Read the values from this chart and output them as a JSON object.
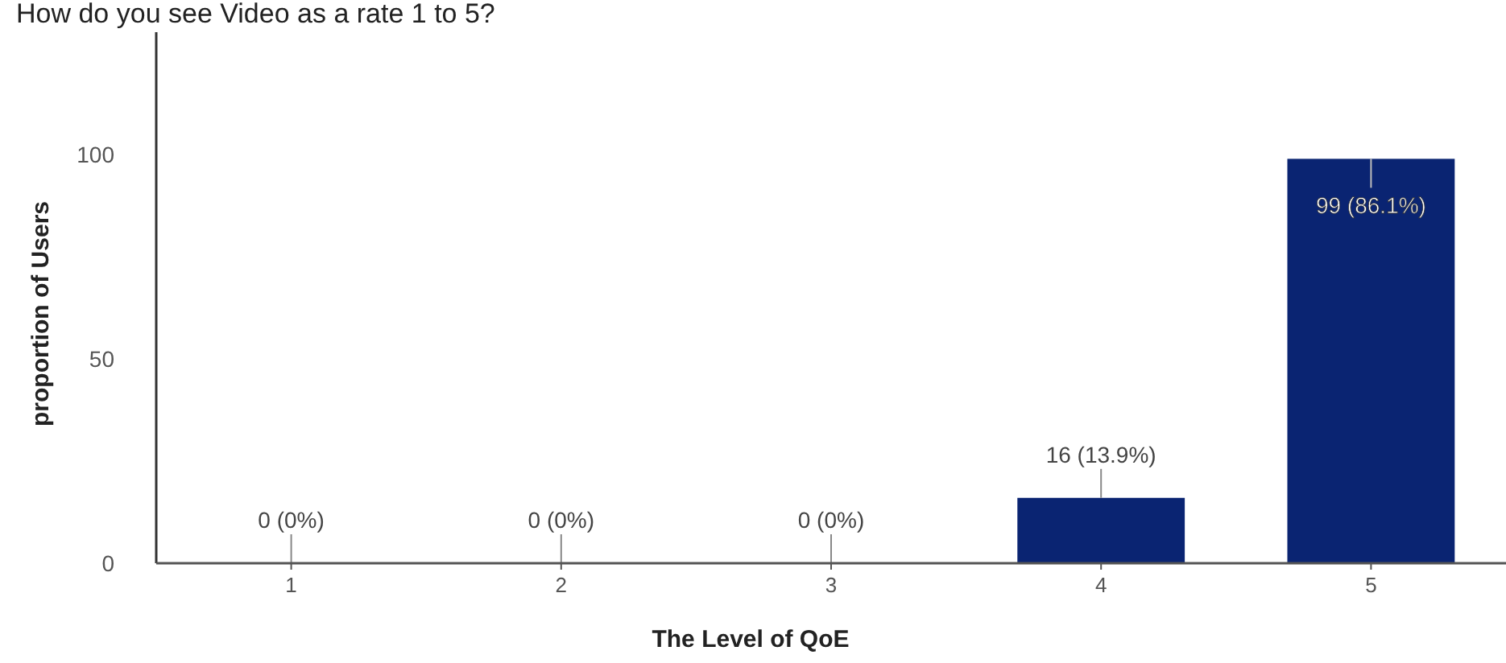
{
  "chart_data": {
    "type": "bar",
    "title": "How do you see Video as a rate 1 to 5?",
    "xlabel": "The Level of QoE",
    "ylabel": "proportion of Users",
    "categories": [
      "1",
      "2",
      "3",
      "4",
      "5"
    ],
    "values": [
      0,
      0,
      0,
      16,
      99
    ],
    "color": "#0a2472",
    "value_labels": [
      "0 (0%)",
      "0 (0%)",
      "0 (0%)",
      "16 (13.9%)",
      "99 (86.1%)"
    ],
    "ylim": [
      0,
      130
    ],
    "yticks": [
      0,
      50,
      100
    ],
    "grid": false,
    "legend": false
  }
}
